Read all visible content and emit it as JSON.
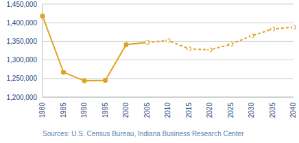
{
  "chart_data": {
    "type": "line",
    "categories": [
      "1980",
      "1985",
      "1990",
      "1995",
      "2000",
      "2005",
      "2010",
      "2015",
      "2020",
      "2025",
      "2030",
      "2035",
      "2040"
    ],
    "series": [
      {
        "color": "#dfa31e",
        "line_style": "solid",
        "marker": "filled",
        "values": [
          1418000,
          1267000,
          1244000,
          1245000,
          1341000,
          1347000,
          null,
          null,
          null,
          null,
          null,
          null,
          null
        ]
      },
      {
        "color": "#dfa31e",
        "line_style": "dashed",
        "marker": "hollow",
        "values": [
          null,
          null,
          null,
          null,
          null,
          1347000,
          1352000,
          1330000,
          1327000,
          1342000,
          1365000,
          1383000,
          1388000
        ]
      }
    ],
    "ylim": [
      1200000,
      1450000
    ],
    "yticks": [
      {
        "value": 1200000,
        "label": "1,200,000"
      },
      {
        "value": 1250000,
        "label": "1,250,000"
      },
      {
        "value": 1300000,
        "label": "1,300,000"
      },
      {
        "value": 1350000,
        "label": "1,350,000"
      },
      {
        "value": 1400000,
        "label": "1,400,000"
      },
      {
        "value": 1450000,
        "label": "1,450,000"
      }
    ],
    "grid": true,
    "annotation": "Sources: U.S. Census Bureau, Indiana Business Research Center"
  }
}
